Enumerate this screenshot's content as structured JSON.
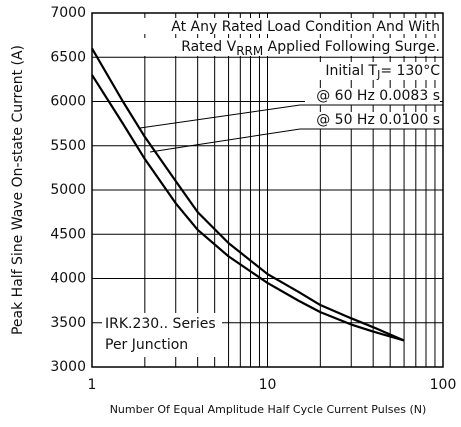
{
  "chart_data": {
    "type": "line",
    "ylabel": "Peak Half Sine Wave On-state Current (A)",
    "xlabel": "Number Of Equal Amplitude Half Cycle Current Pulses (N)",
    "x": [
      1,
      1.5,
      2,
      3,
      4,
      6,
      10,
      15,
      20,
      30,
      40,
      60
    ],
    "series": [
      {
        "name": "@ 60 Hz 0.0083 s",
        "color": "#000000",
        "values": [
          6600,
          6000,
          5600,
          5100,
          4750,
          4400,
          4050,
          3850,
          3700,
          3550,
          3450,
          3300
        ]
      },
      {
        "name": "@ 50 Hz 0.0100 s",
        "color": "#000000",
        "values": [
          6300,
          5750,
          5350,
          4850,
          4550,
          4250,
          3950,
          3750,
          3620,
          3480,
          3400,
          3300
        ]
      }
    ],
    "xlim": [
      1,
      100
    ],
    "xticks": [
      1,
      10,
      100
    ],
    "x_minor_grid": [
      2,
      3,
      4,
      5,
      6,
      7,
      8,
      9,
      20,
      30,
      40,
      50,
      60,
      70,
      80,
      90
    ],
    "xscale": "log",
    "ylim": [
      3000,
      7000
    ],
    "yticks": [
      3000,
      3500,
      4000,
      4500,
      5000,
      5500,
      6000,
      6500,
      7000
    ],
    "grid": true,
    "annotations": {
      "line1": "At Any Rated Load Condition And With",
      "line2_a": "Rated V",
      "line2_sub": "RRM",
      "line2_b": " Applied Following Surge.",
      "line3_a": "Initial T",
      "line3_sub": "J",
      "line3_b": "= 130°C",
      "device1": "IRK.230.. Series",
      "device2": "Per Junction"
    }
  }
}
